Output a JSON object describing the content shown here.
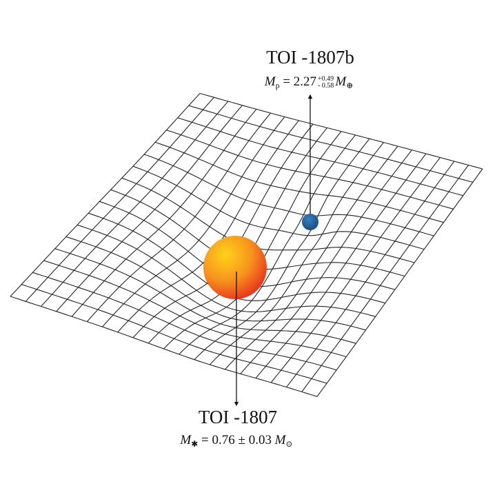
{
  "planet": {
    "name": "TOI -1807b",
    "symbol": "M",
    "subscript": "p",
    "value": "= 2.27",
    "upper_error": "+0.49",
    "lower_error": "- 0.58",
    "unit_symbol": "M",
    "unit_subscript": "⊕"
  },
  "star": {
    "name": "TOI -1807",
    "symbol": "M",
    "subscript": "✱",
    "value": "= 0.76 ± 0.03",
    "unit_symbol": "M",
    "unit_subscript": "⊙"
  }
}
